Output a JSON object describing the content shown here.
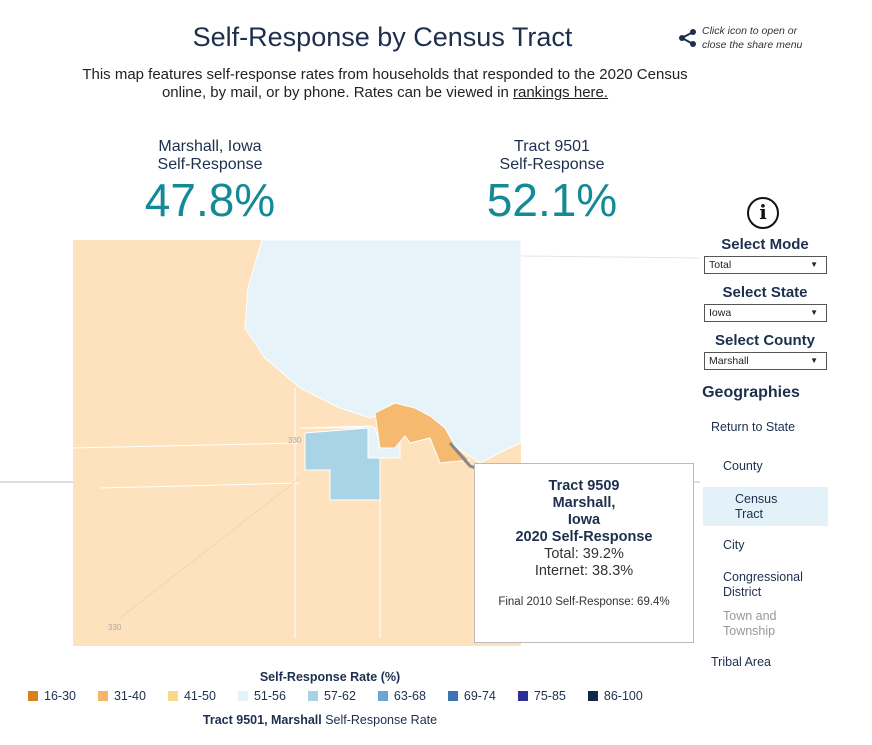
{
  "header": {
    "title": "Self-Response by Census Tract",
    "share_hint_1": "Click icon to open or",
    "share_hint_2": "close the share menu",
    "description": "This map features self-response rates from households that responded to the 2020 Census online, by mail, or by phone. Rates can be viewed in ",
    "link": "rankings here."
  },
  "stats": [
    {
      "line1": "Marshall, Iowa",
      "line2": "Self-Response",
      "value": "47.8%"
    },
    {
      "line1": "Tract 9501",
      "line2": "Self-Response",
      "value": "52.1%"
    }
  ],
  "tooltip": {
    "l1": "Tract 9509",
    "l2": "Marshall,",
    "l3": "Iowa",
    "l4": "2020 Self-Response",
    "total": "Total: 39.2%",
    "internet": "Internet: 38.3%",
    "final2010": "Final 2010 Self-Response: 69.4%"
  },
  "sidebar": {
    "mode_label": "Select Mode",
    "mode_value": "Total",
    "state_label": "Select State",
    "state_value": "Iowa",
    "county_label": "Select County",
    "county_value": "Marshall",
    "geo_title": "Geographies",
    "items": [
      {
        "label": "Return to State"
      },
      {
        "label": "County"
      },
      {
        "label": "Census Tract"
      },
      {
        "label": "City"
      },
      {
        "label": "Congressional District"
      },
      {
        "label": "Town and Township"
      },
      {
        "label": "Tribal Area"
      }
    ]
  },
  "legend": {
    "title": "Self-Response Rate (%)",
    "subtitle_bold": "Tract 9501, Marshall",
    "subtitle": " Self-Response Rate",
    "items": [
      {
        "label": "16-30",
        "color": "#d9821c"
      },
      {
        "label": "31-40",
        "color": "#f5b66b"
      },
      {
        "label": "41-50",
        "color": "#fbd98a"
      },
      {
        "label": "51-56",
        "color": "#e3f2f8"
      },
      {
        "label": "57-62",
        "color": "#a8d3e6"
      },
      {
        "label": "63-68",
        "color": "#6ba6d2"
      },
      {
        "label": "69-74",
        "color": "#3f73b8"
      },
      {
        "label": "75-85",
        "color": "#2c2f96"
      },
      {
        "label": "86-100",
        "color": "#13294b"
      }
    ]
  },
  "map": {
    "route_labels": [
      "330",
      "330"
    ]
  }
}
